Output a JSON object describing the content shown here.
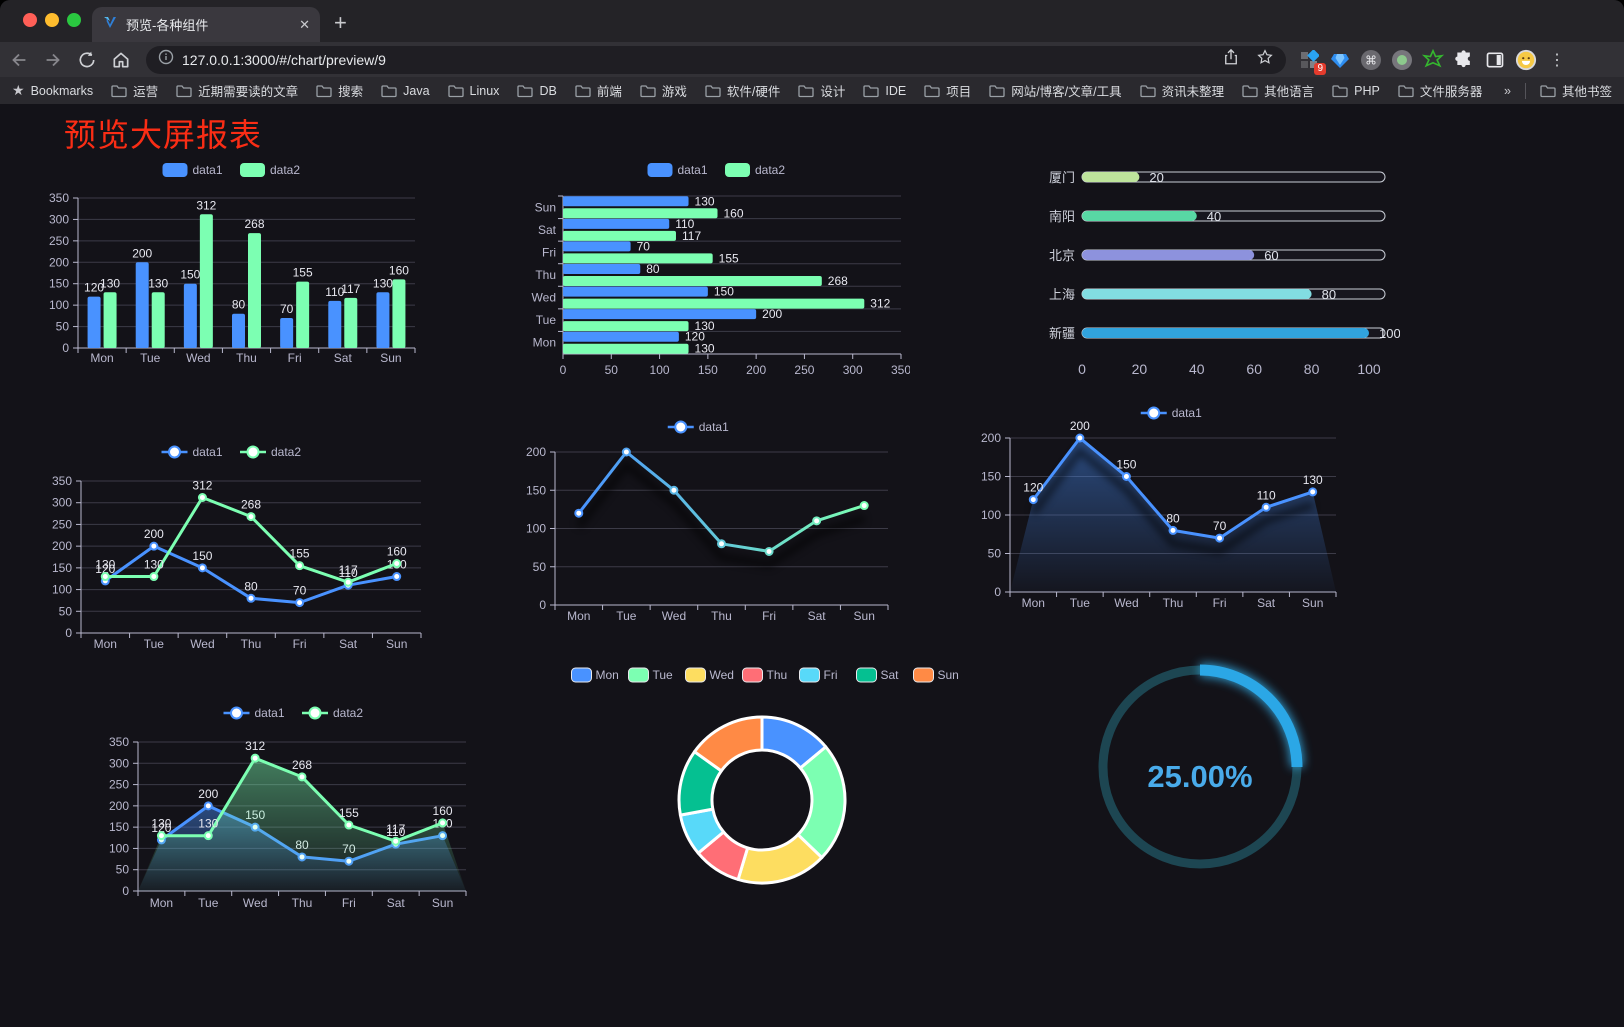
{
  "browser": {
    "tab_title": "预览-各种组件",
    "tab_close": "✕",
    "new_tab": "+",
    "url": "127.0.0.1:3000/#/chart/preview/9",
    "bookmarks_label": "Bookmarks",
    "bookmarks": [
      "运营",
      "近期需要读的文章",
      "搜索",
      "Java",
      "Linux",
      "DB",
      "前端",
      "游戏",
      "软件/硬件",
      "设计",
      "IDE",
      "项目",
      "网站/博客/文章/工具",
      "资讯未整理",
      "其他语言",
      "PHP",
      "文件服务器"
    ],
    "bookmarks_overflow": "»",
    "other_bookmarks": "其他书签",
    "extension_badge": "9"
  },
  "page": {
    "title": "预览大屏报表"
  },
  "chart_data": [
    {
      "id": "c1",
      "type": "bar",
      "title": "",
      "categories": [
        "Mon",
        "Tue",
        "Wed",
        "Thu",
        "Fri",
        "Sat",
        "Sun"
      ],
      "series": [
        {
          "name": "data1",
          "color": "#4992ff",
          "values": [
            120,
            200,
            150,
            80,
            70,
            110,
            130
          ]
        },
        {
          "name": "data2",
          "color": "#7cffb2",
          "values": [
            130,
            130,
            312,
            268,
            155,
            117,
            160
          ]
        }
      ],
      "ylim": [
        0,
        350
      ],
      "ystep": 50,
      "grid": true,
      "legend_position": "top"
    },
    {
      "id": "c2",
      "type": "bar-horizontal",
      "categories": [
        "Sun",
        "Sat",
        "Fri",
        "Thu",
        "Wed",
        "Tue",
        "Mon"
      ],
      "series": [
        {
          "name": "data1",
          "color": "#4992ff",
          "values": [
            130,
            110,
            70,
            80,
            150,
            200,
            120
          ]
        },
        {
          "name": "data2",
          "color": "#7cffb2",
          "values": [
            160,
            117,
            155,
            268,
            312,
            130,
            130
          ]
        }
      ],
      "xlim": [
        0,
        350
      ],
      "xstep": 50,
      "grid": true,
      "legend_position": "top"
    },
    {
      "id": "c3",
      "type": "progress-bars",
      "items": [
        {
          "label": "厦门",
          "value": 20,
          "color": "#bee49c"
        },
        {
          "label": "南阳",
          "value": 40,
          "color": "#58d8a4"
        },
        {
          "label": "北京",
          "value": 60,
          "color": "#8d92dd"
        },
        {
          "label": "上海",
          "value": 80,
          "color": "#82dde2"
        },
        {
          "label": "新疆",
          "value": 100,
          "color": "#31a3dd"
        }
      ],
      "xlim": [
        0,
        100
      ],
      "xticks": [
        0,
        20,
        40,
        60,
        80,
        100
      ]
    },
    {
      "id": "c4",
      "type": "line",
      "categories": [
        "Mon",
        "Tue",
        "Wed",
        "Thu",
        "Fri",
        "Sat",
        "Sun"
      ],
      "series": [
        {
          "name": "data1",
          "color": "#4992ff",
          "values": [
            120,
            200,
            150,
            80,
            70,
            110,
            130
          ]
        },
        {
          "name": "data2",
          "color": "#7cffb2",
          "values": [
            130,
            130,
            312,
            268,
            155,
            117,
            160
          ]
        }
      ],
      "ylim": [
        0,
        350
      ],
      "ystep": 50,
      "labels": true,
      "legend_position": "top"
    },
    {
      "id": "c5",
      "type": "line",
      "categories": [
        "Mon",
        "Tue",
        "Wed",
        "Thu",
        "Fri",
        "Sat",
        "Sun"
      ],
      "series": [
        {
          "name": "data1",
          "color": "#4992ff",
          "color2": "#7cffb2",
          "gradient": true,
          "shadow": true,
          "values": [
            120,
            200,
            150,
            80,
            70,
            110,
            130
          ]
        }
      ],
      "ylim": [
        0,
        200
      ],
      "ystep": 50,
      "labels": false,
      "legend_position": "top"
    },
    {
      "id": "c6",
      "type": "line",
      "categories": [
        "Mon",
        "Tue",
        "Wed",
        "Thu",
        "Fri",
        "Sat",
        "Sun"
      ],
      "series": [
        {
          "name": "data1",
          "color": "#4992ff",
          "area": true,
          "shadow": true,
          "values": [
            120,
            200,
            150,
            80,
            70,
            110,
            130
          ]
        }
      ],
      "ylim": [
        0,
        200
      ],
      "ystep": 50,
      "labels": true,
      "legend_position": "top"
    },
    {
      "id": "c7",
      "type": "line",
      "categories": [
        "Mon",
        "Tue",
        "Wed",
        "Thu",
        "Fri",
        "Sat",
        "Sun"
      ],
      "series": [
        {
          "name": "data1",
          "color": "#4992ff",
          "area": true,
          "values": [
            120,
            200,
            150,
            80,
            70,
            110,
            130
          ]
        },
        {
          "name": "data2",
          "color": "#7cffb2",
          "area": true,
          "values": [
            130,
            130,
            312,
            268,
            155,
            117,
            160
          ]
        }
      ],
      "ylim": [
        0,
        350
      ],
      "ystep": 50,
      "labels": true,
      "legend_position": "top"
    },
    {
      "id": "c8",
      "type": "pie",
      "items": [
        {
          "label": "Mon",
          "value": 120,
          "color": "#4992ff"
        },
        {
          "label": "Tue",
          "value": 200,
          "color": "#7cffb2"
        },
        {
          "label": "Wed",
          "value": 150,
          "color": "#fddd60"
        },
        {
          "label": "Thu",
          "value": 80,
          "color": "#ff6e76"
        },
        {
          "label": "Fri",
          "value": 70,
          "color": "#58d9f9"
        },
        {
          "label": "Sat",
          "value": 110,
          "color": "#05c091"
        },
        {
          "label": "Sun",
          "value": 130,
          "color": "#ff8a45"
        }
      ],
      "donut": true,
      "legend_position": "top"
    },
    {
      "id": "c9",
      "type": "gauge",
      "value": 25,
      "display": "25.00%",
      "max": 100,
      "color": "#2ba7e6",
      "track_color": "#1d4652",
      "text_color": "#49abea"
    }
  ]
}
